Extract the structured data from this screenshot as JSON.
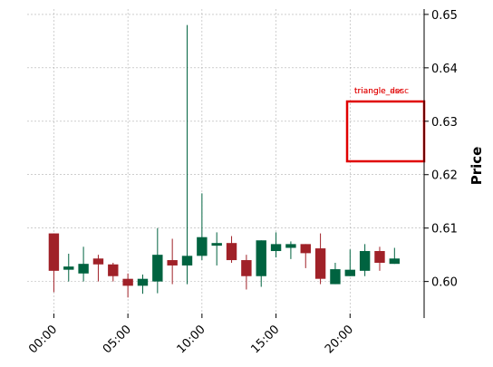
{
  "chart_data": {
    "type": "candlestick",
    "title": "",
    "xlabel": "",
    "ylabel": "Price",
    "x_tick_labels": [
      "00:00",
      "05:00",
      "10:00",
      "15:00",
      "20:00",
      ""
    ],
    "x_tick_positions": [
      0,
      5,
      10,
      15,
      20,
      25
    ],
    "ylim": [
      0.594,
      0.651
    ],
    "y_ticks": [
      0.6,
      0.61,
      0.62,
      0.63,
      0.64,
      0.65
    ],
    "y_tick_labels": [
      "0.60",
      "0.61",
      "0.62",
      "0.63",
      "0.64",
      "0.65"
    ],
    "grid": true,
    "colors": {
      "up": "#006340",
      "down": "#A02128",
      "annotation": "#e00000",
      "grid": "#b0b0b0"
    },
    "candles": [
      {
        "t": 0,
        "open": 0.609,
        "high": 0.609,
        "low": 0.598,
        "close": 0.602
      },
      {
        "t": 1,
        "open": 0.6022,
        "high": 0.6052,
        "low": 0.6,
        "close": 0.6028
      },
      {
        "t": 2,
        "open": 0.6015,
        "high": 0.6065,
        "low": 0.6,
        "close": 0.6033
      },
      {
        "t": 3,
        "open": 0.6043,
        "high": 0.605,
        "low": 0.6,
        "close": 0.6032
      },
      {
        "t": 4,
        "open": 0.6032,
        "high": 0.6035,
        "low": 0.6,
        "close": 0.601
      },
      {
        "t": 5,
        "open": 0.6005,
        "high": 0.6015,
        "low": 0.597,
        "close": 0.5992
      },
      {
        "t": 6,
        "open": 0.5992,
        "high": 0.6013,
        "low": 0.5977,
        "close": 0.6005
      },
      {
        "t": 7,
        "open": 0.6,
        "high": 0.61,
        "low": 0.5978,
        "close": 0.605
      },
      {
        "t": 8,
        "open": 0.604,
        "high": 0.608,
        "low": 0.5995,
        "close": 0.603
      },
      {
        "t": 9,
        "open": 0.603,
        "high": 0.648,
        "low": 0.5995,
        "close": 0.6048
      },
      {
        "t": 10,
        "open": 0.6048,
        "high": 0.6165,
        "low": 0.604,
        "close": 0.6083
      },
      {
        "t": 11,
        "open": 0.6067,
        "high": 0.6092,
        "low": 0.603,
        "close": 0.6072
      },
      {
        "t": 12,
        "open": 0.6072,
        "high": 0.6085,
        "low": 0.6035,
        "close": 0.604
      },
      {
        "t": 13,
        "open": 0.604,
        "high": 0.605,
        "low": 0.5985,
        "close": 0.601
      },
      {
        "t": 14,
        "open": 0.601,
        "high": 0.6077,
        "low": 0.599,
        "close": 0.6077
      },
      {
        "t": 15,
        "open": 0.6057,
        "high": 0.6092,
        "low": 0.6045,
        "close": 0.607
      },
      {
        "t": 16,
        "open": 0.6063,
        "high": 0.6075,
        "low": 0.6042,
        "close": 0.607
      },
      {
        "t": 17,
        "open": 0.607,
        "high": 0.607,
        "low": 0.6025,
        "close": 0.6053
      },
      {
        "t": 18,
        "open": 0.6062,
        "high": 0.609,
        "low": 0.5995,
        "close": 0.6005
      },
      {
        "t": 19,
        "open": 0.5995,
        "high": 0.6035,
        "low": 0.5995,
        "close": 0.6023
      },
      {
        "t": 20,
        "open": 0.601,
        "high": 0.606,
        "low": 0.601,
        "close": 0.6022
      },
      {
        "t": 21,
        "open": 0.602,
        "high": 0.607,
        "low": 0.601,
        "close": 0.6057
      },
      {
        "t": 22,
        "open": 0.6057,
        "high": 0.6065,
        "low": 0.602,
        "close": 0.6035
      },
      {
        "t": 23,
        "open": 0.6033,
        "high": 0.6063,
        "low": 0.6033,
        "close": 0.6043
      }
    ],
    "annotation": {
      "labels": [
        "triangle_asc",
        "triangle_desc"
      ],
      "t_start": 19.8,
      "t_end": 25,
      "price_top": 0.6337,
      "price_bottom": 0.6225
    }
  }
}
